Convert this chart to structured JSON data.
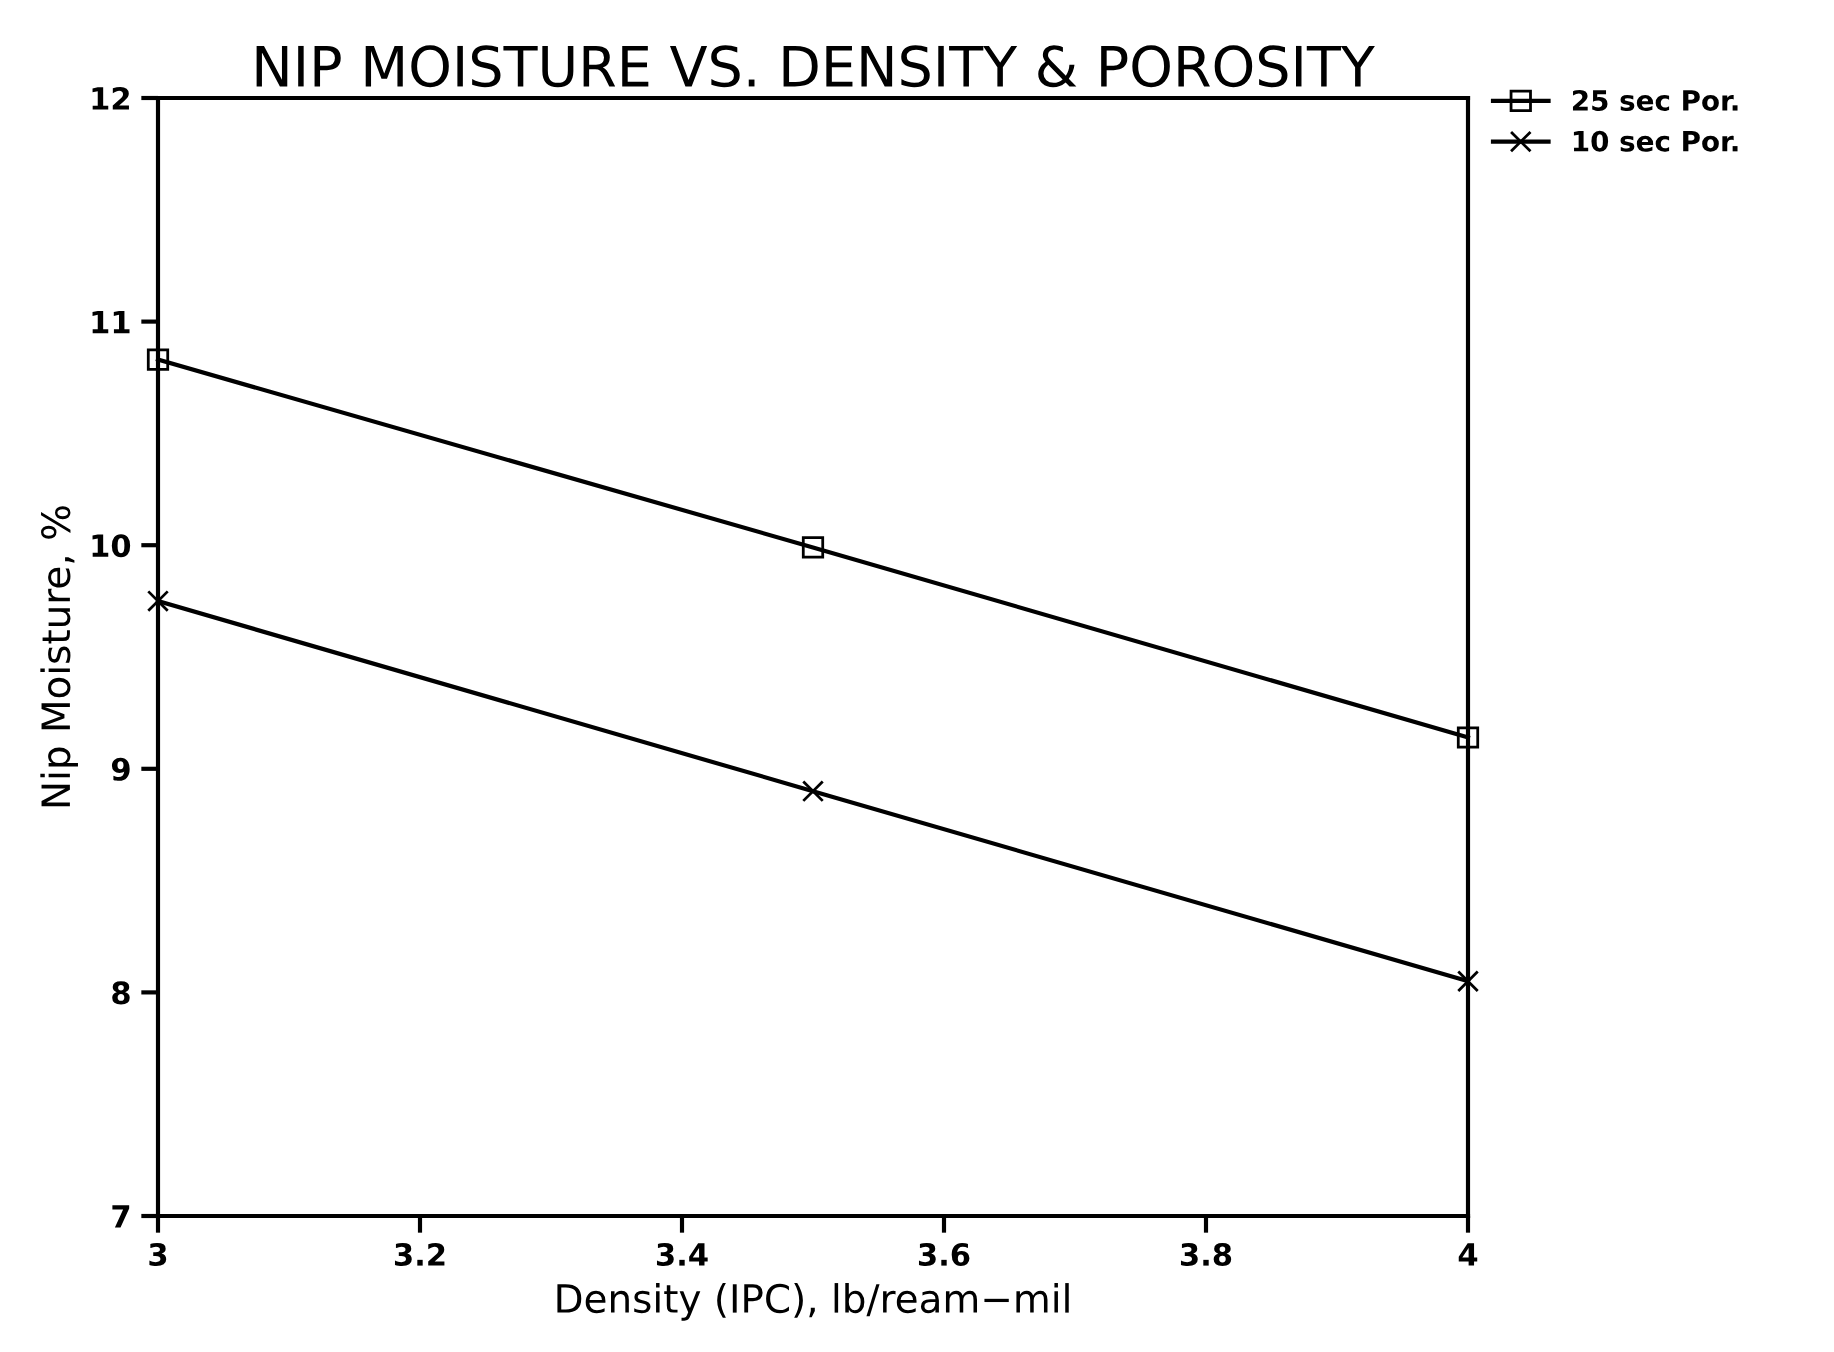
{
  "chart_data": {
    "type": "line",
    "title": "NIP MOISTURE VS. DENSITY & POROSITY",
    "xlabel": "Density (IPC), lb/ream−mil",
    "ylabel": "Nip Moisture, %",
    "x": [
      3,
      3.5,
      4
    ],
    "series": [
      {
        "name": "25 sec Por.",
        "color": "#000000",
        "values": [
          10.83,
          9.99,
          9.14
        ],
        "marker": "square"
      },
      {
        "name": "10 sec Por.",
        "color": "#000000",
        "values": [
          9.75,
          8.9,
          8.05
        ],
        "marker": "cross"
      }
    ],
    "xlim": [
      3,
      4
    ],
    "xticks": [
      3,
      3.2,
      3.4,
      3.6,
      3.8,
      4
    ],
    "ylim": [
      7,
      12
    ],
    "yticks": [
      7,
      8,
      9,
      10,
      11,
      12
    ],
    "grid": false,
    "legend": "top right",
    "line_style": "solid"
  }
}
